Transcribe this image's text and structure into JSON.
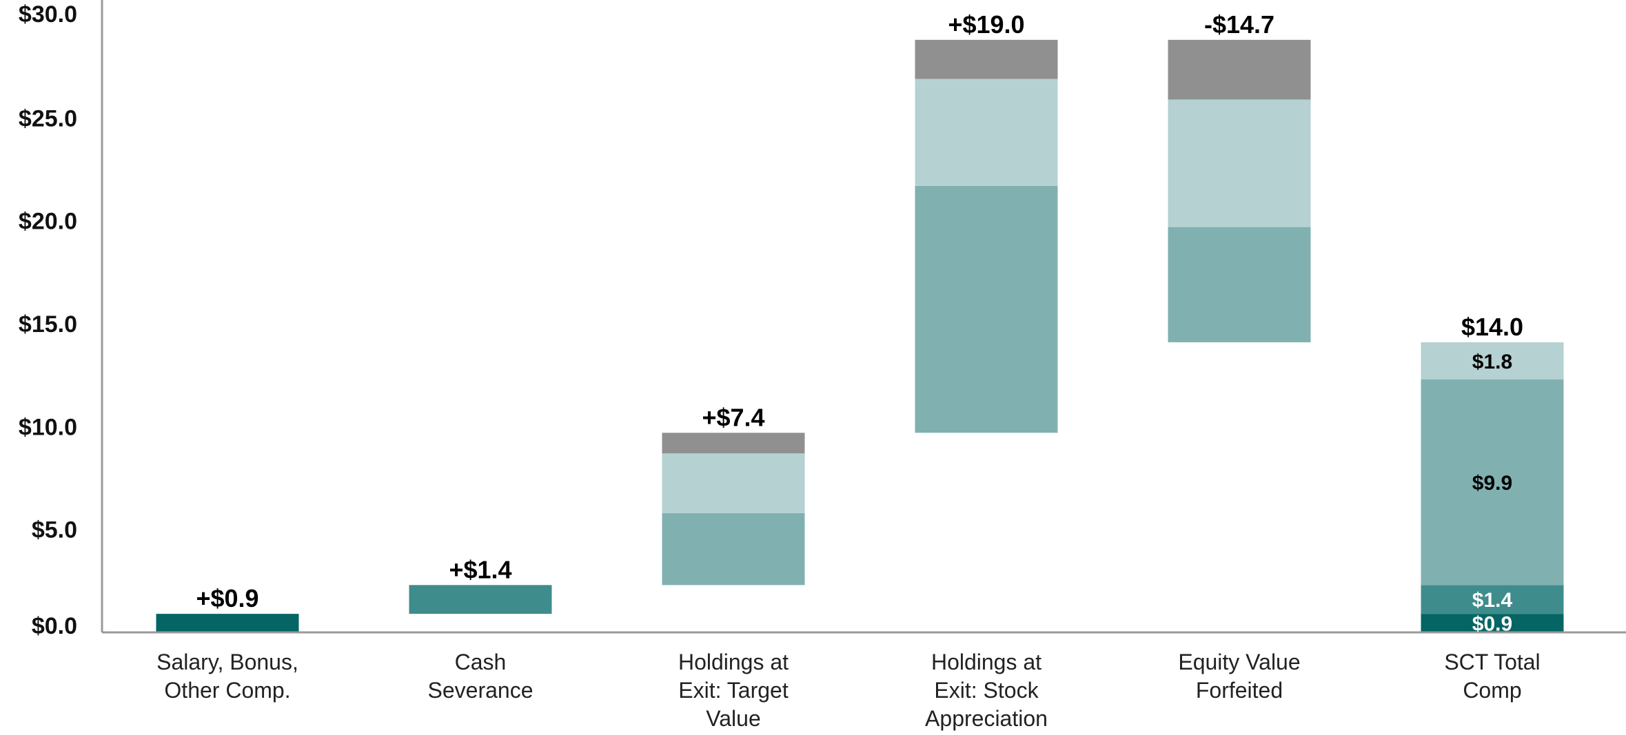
{
  "chart_data": {
    "type": "bar",
    "subtype": "stacked-waterfall",
    "title": "",
    "xlabel": "",
    "ylabel": "",
    "ylim": [
      0,
      30
    ],
    "y_ticks": [
      {
        "value": 0,
        "label": "$0.0"
      },
      {
        "value": 5,
        "label": "$5.0"
      },
      {
        "value": 10,
        "label": "$10.0"
      },
      {
        "value": 15,
        "label": "$15.0"
      },
      {
        "value": 20,
        "label": "$20.0"
      },
      {
        "value": 25,
        "label": "$25.0"
      },
      {
        "value": 30,
        "label": "$30.0"
      }
    ],
    "grid": false,
    "legend": "none",
    "colors": {
      "dark_teal": "#056564",
      "medium_teal": "#3f8c8c",
      "light_teal": "#81b0b0",
      "pale_teal": "#b5d1d1",
      "gray": "#909090",
      "label_dark": "#000000",
      "label_light": "#ffffff"
    },
    "categories": [
      {
        "label_lines": [
          "Salary, Bonus,",
          "Other Comp."
        ],
        "total_label": "+$0.9",
        "segments": [
          {
            "from": 0,
            "to": 0.9,
            "color": "dark_teal"
          }
        ]
      },
      {
        "label_lines": [
          "Cash",
          "Severance"
        ],
        "total_label": "+$1.4",
        "segments": [
          {
            "from": 0.9,
            "to": 2.3,
            "color": "medium_teal"
          }
        ]
      },
      {
        "label_lines": [
          "Holdings at",
          "Exit: Target",
          "Value"
        ],
        "total_label": "+$7.4",
        "segments": [
          {
            "from": 2.3,
            "to": 5.8,
            "color": "light_teal"
          },
          {
            "from": 5.8,
            "to": 8.7,
            "color": "pale_teal"
          },
          {
            "from": 8.7,
            "to": 9.7,
            "color": "gray"
          }
        ]
      },
      {
        "label_lines": [
          "Holdings at",
          "Exit: Stock",
          "Appreciation"
        ],
        "total_label": "+$19.0",
        "segments": [
          {
            "from": 9.7,
            "to": 21.7,
            "color": "light_teal"
          },
          {
            "from": 21.7,
            "to": 26.9,
            "color": "pale_teal"
          },
          {
            "from": 26.9,
            "to": 28.8,
            "color": "gray"
          }
        ]
      },
      {
        "label_lines": [
          "Equity Value",
          "Forfeited"
        ],
        "total_label": "-$14.7",
        "segments": [
          {
            "from": 14.1,
            "to": 19.7,
            "color": "light_teal"
          },
          {
            "from": 19.7,
            "to": 25.9,
            "color": "pale_teal"
          },
          {
            "from": 25.9,
            "to": 28.8,
            "color": "gray"
          }
        ]
      },
      {
        "label_lines": [
          "SCT Total",
          "Comp"
        ],
        "total_label": "$14.0",
        "segments": [
          {
            "from": 0,
            "to": 0.9,
            "color": "dark_teal",
            "label": "$0.9",
            "label_color": "label_light"
          },
          {
            "from": 0.9,
            "to": 2.3,
            "color": "medium_teal",
            "label": "$1.4",
            "label_color": "label_light"
          },
          {
            "from": 2.3,
            "to": 12.3,
            "color": "light_teal",
            "label": "$9.9",
            "label_color": "label_dark"
          },
          {
            "from": 12.3,
            "to": 14.1,
            "color": "pale_teal",
            "label": "$1.8",
            "label_color": "label_dark"
          }
        ]
      }
    ]
  }
}
